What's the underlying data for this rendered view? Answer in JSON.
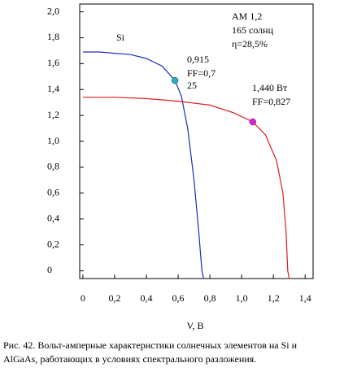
{
  "chart_data": {
    "type": "line",
    "xlabel": "V, В",
    "xlim": [
      -0.02,
      1.45
    ],
    "ylim": [
      -0.06,
      2.06
    ],
    "xticks": [
      0,
      {
        "value": 0.2,
        "label": "0,2"
      },
      {
        "value": 0.4,
        "label": "0,4"
      },
      {
        "value": 0.6,
        "label": "0,6"
      },
      {
        "value": 0.8,
        "label": "0,8"
      },
      {
        "value": 1.0,
        "label": "1,0"
      },
      {
        "value": 1.2,
        "label": "1,2"
      },
      {
        "value": 1.4,
        "label": "1,4"
      }
    ],
    "yticks": [
      0,
      {
        "value": 0.2,
        "label": "0,2"
      },
      {
        "value": 0.4,
        "label": "0,4"
      },
      {
        "value": 0.6,
        "label": "0,6"
      },
      {
        "value": 0.8,
        "label": "0,8"
      },
      {
        "value": 1.0,
        "label": "1,0"
      },
      {
        "value": 1.2,
        "label": "1,2"
      },
      {
        "value": 1.4,
        "label": "1,4"
      },
      {
        "value": 1.6,
        "label": "1,6"
      },
      {
        "value": 1.8,
        "label": "1,8"
      },
      {
        "value": 2.0,
        "label": "2,0"
      }
    ],
    "series": [
      {
        "name": "Si",
        "color": "#1c2cc0",
        "x": [
          0,
          0.1,
          0.2,
          0.3,
          0.4,
          0.5,
          0.58,
          0.62,
          0.66,
          0.7,
          0.73,
          0.75,
          0.76
        ],
        "y": [
          1.69,
          1.69,
          1.68,
          1.67,
          1.64,
          1.58,
          1.47,
          1.35,
          1.1,
          0.7,
          0.3,
          0,
          -0.06
        ],
        "marker": {
          "x": 0.58,
          "y": 1.47,
          "color": "#20b4c4"
        }
      },
      {
        "name": "AlGaAs",
        "color": "#e01c1c",
        "x": [
          0,
          0.2,
          0.4,
          0.6,
          0.8,
          0.95,
          1.07,
          1.15,
          1.22,
          1.26,
          1.28,
          1.29,
          1.3
        ],
        "y": [
          1.34,
          1.34,
          1.33,
          1.31,
          1.28,
          1.22,
          1.15,
          1.05,
          0.85,
          0.6,
          0.3,
          0,
          -0.06
        ],
        "marker": {
          "x": 1.07,
          "y": 1.15,
          "color": "#e020e0"
        }
      }
    ],
    "annotations": [
      "Si",
      "0,915",
      "FF=0,7",
      "25",
      "1,440 Вт",
      "FF=0,827",
      "AM 1,2",
      "165 солнц",
      "η=28,5%"
    ],
    "caption": [
      "Рис. 42. Вольт-амперные характеристики солнечных элементов на Si и",
      "AlGaAs,  работающих в условиях спектрального разложения."
    ]
  }
}
